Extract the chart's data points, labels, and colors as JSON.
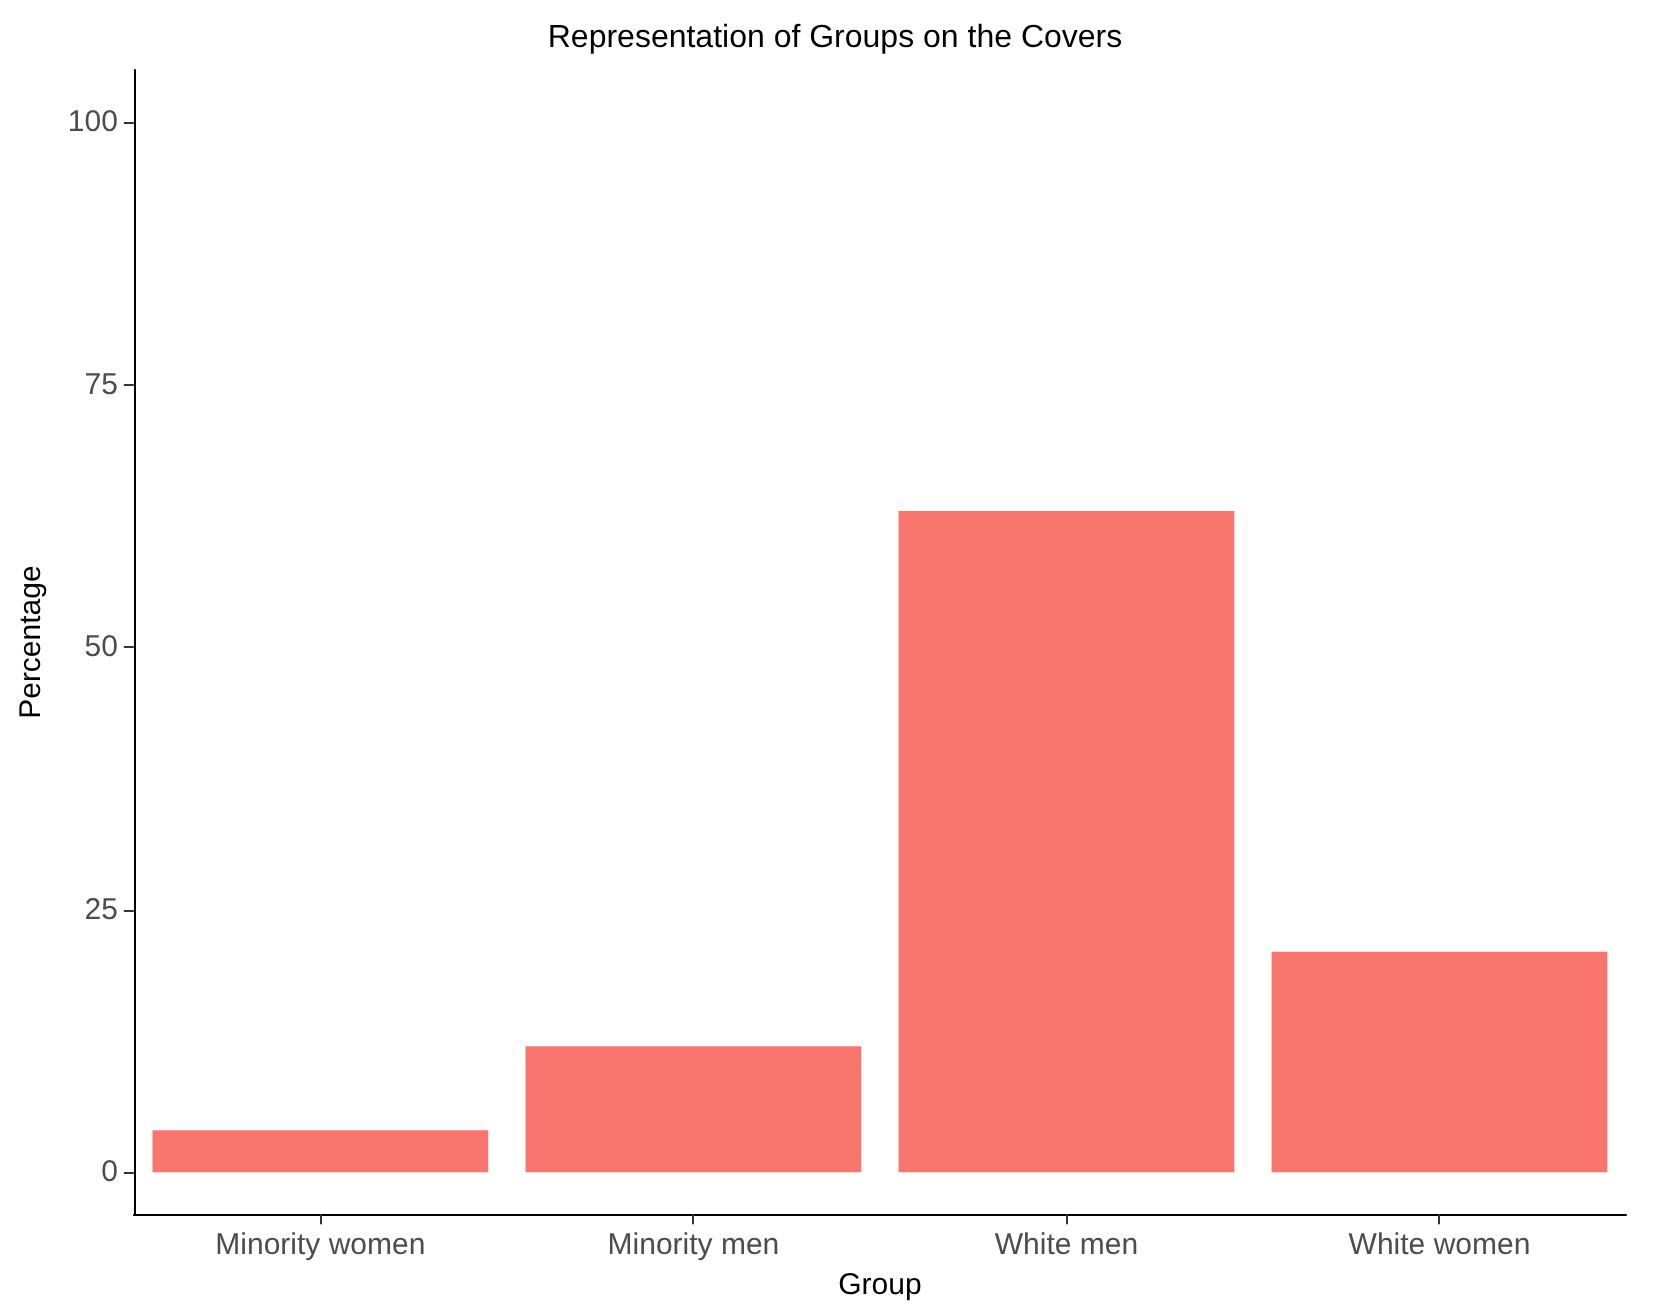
{
  "chart_data": {
    "type": "bar",
    "title": "Representation of Groups on the Covers",
    "xlabel": "Group",
    "ylabel": "Percentage",
    "categories": [
      "Minority women",
      "Minority men",
      "White men",
      "White women"
    ],
    "values": [
      4,
      12,
      63,
      21
    ],
    "color": "#f8766d",
    "ylim": [
      -4,
      105
    ],
    "yticks": [
      0,
      25,
      50,
      75,
      100
    ],
    "grid": false
  }
}
